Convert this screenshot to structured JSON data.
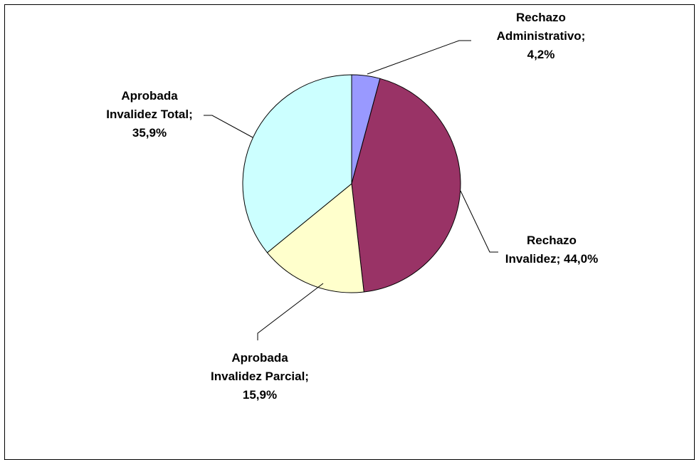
{
  "chart_data": {
    "type": "pie",
    "title": "",
    "legend": "none",
    "start_angle_deg": 0,
    "direction": "clockwise",
    "slices": [
      {
        "name": "Rechazo Administrativo",
        "value": 4.2,
        "label_lines": [
          "Rechazo",
          "Administrativo;",
          "4,2%"
        ],
        "color": "#9999ff"
      },
      {
        "name": "Rechazo Invalidez",
        "value": 44.0,
        "label_lines": [
          "Rechazo",
          "Invalidez; 44,0%"
        ],
        "color": "#993366"
      },
      {
        "name": "Aprobada Invalidez Parcial",
        "value": 15.9,
        "label_lines": [
          "Aprobada",
          "Invalidez Parcial;",
          "15,9%"
        ],
        "color": "#ffffcc"
      },
      {
        "name": "Aprobada Invalidez Total",
        "value": 35.9,
        "label_lines": [
          "Aprobada",
          "Invalidez Total;",
          "35,9%"
        ],
        "color": "#ccffff"
      }
    ]
  }
}
